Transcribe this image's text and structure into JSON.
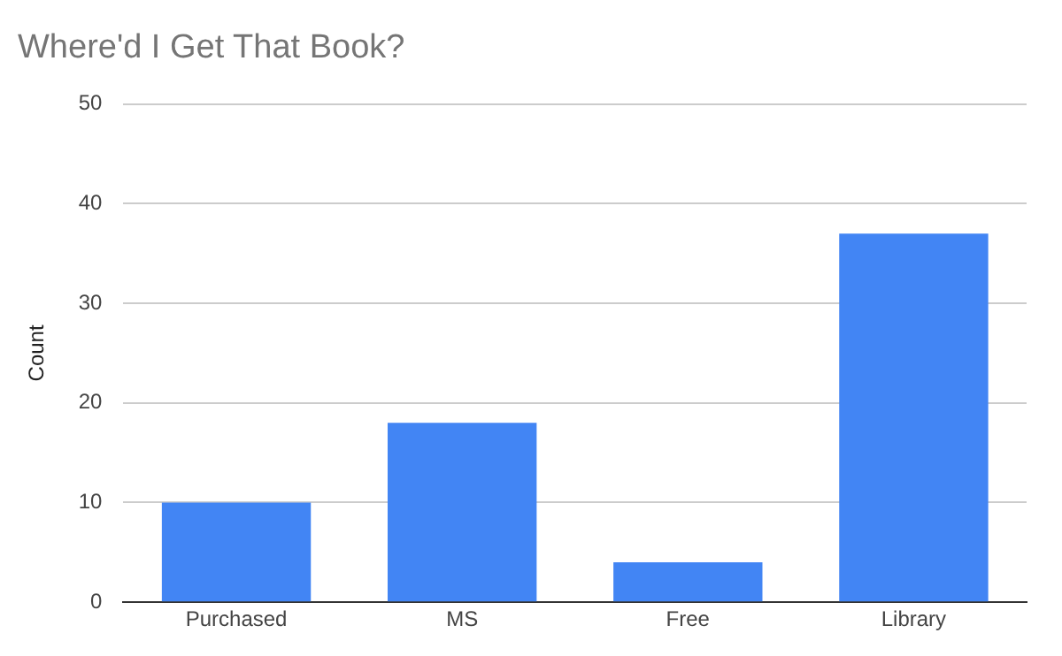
{
  "chart_data": {
    "type": "bar",
    "title": "Where'd I Get That Book?",
    "ylabel": "Count",
    "categories": [
      "Purchased",
      "MS",
      "Free",
      "Library"
    ],
    "values": [
      10,
      18,
      4,
      37
    ],
    "color": "#4285f4",
    "ylim": [
      0,
      50
    ],
    "yticks": [
      0,
      10,
      20,
      30,
      40,
      50
    ],
    "grid": "y"
  }
}
